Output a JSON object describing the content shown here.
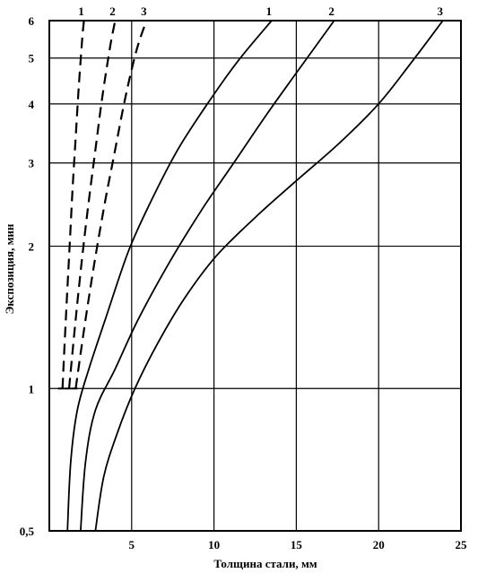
{
  "chart_data": {
    "type": "line",
    "xlabel": "Толщина стали, мм",
    "ylabel": "Экспозиция, мин",
    "xlim": [
      0,
      25
    ],
    "ylim": [
      0.5,
      6
    ],
    "yscale": "log",
    "grid": true,
    "x_ticks": [
      {
        "value": 5,
        "label": "5"
      },
      {
        "value": 10,
        "label": "10"
      },
      {
        "value": 15,
        "label": "15"
      },
      {
        "value": 20,
        "label": "20"
      },
      {
        "value": 25,
        "label": "25"
      }
    ],
    "y_ticks": [
      {
        "value": 0.5,
        "label": "0,5"
      },
      {
        "value": 1,
        "label": "1"
      },
      {
        "value": 2,
        "label": "2"
      },
      {
        "value": 3,
        "label": "3"
      },
      {
        "value": 4,
        "label": "4"
      },
      {
        "value": 5,
        "label": "5"
      },
      {
        "value": 6,
        "label": "6"
      }
    ],
    "series": [
      {
        "name": "1",
        "style": "dashed",
        "x": [
          0.8,
          1.0,
          1.2,
          1.4,
          1.6,
          1.8,
          2.0,
          2.1
        ],
        "y": [
          1.0,
          1.4,
          1.9,
          2.6,
          3.4,
          4.4,
          5.5,
          6.0
        ]
      },
      {
        "name": "2",
        "style": "dashed",
        "x": [
          1.2,
          1.6,
          2.0,
          2.4,
          2.8,
          3.2,
          3.7,
          4.0
        ],
        "y": [
          1.0,
          1.4,
          1.9,
          2.5,
          3.2,
          4.1,
          5.3,
          6.0
        ]
      },
      {
        "name": "3",
        "style": "dashed",
        "x": [
          1.6,
          2.2,
          2.8,
          3.4,
          4.0,
          4.6,
          5.3,
          5.9
        ],
        "y": [
          1.0,
          1.4,
          1.9,
          2.5,
          3.2,
          4.1,
          5.2,
          6.0
        ]
      },
      {
        "name": "1",
        "style": "solid",
        "x": [
          1.1,
          1.3,
          1.7,
          2.4,
          3.4,
          4.8,
          6.2,
          7.8,
          9.6,
          11.4,
          13.5
        ],
        "y": [
          0.5,
          0.7,
          0.9,
          1.1,
          1.4,
          1.95,
          2.5,
          3.2,
          4.0,
          4.9,
          6.0
        ]
      },
      {
        "name": "2",
        "style": "solid",
        "x": [
          1.9,
          2.2,
          2.8,
          4.0,
          5.4,
          7.3,
          9.3,
          11.2,
          13.2,
          15.1,
          17.3
        ],
        "y": [
          0.5,
          0.7,
          0.9,
          1.1,
          1.4,
          1.85,
          2.4,
          3.0,
          3.8,
          4.7,
          6.0
        ]
      },
      {
        "name": "3",
        "style": "solid",
        "x": [
          2.8,
          3.3,
          4.1,
          5.2,
          6.6,
          8.2,
          10.1,
          12.5,
          15.0,
          17.6,
          20.0,
          22.0,
          23.9
        ],
        "y": [
          0.5,
          0.65,
          0.8,
          1.0,
          1.25,
          1.55,
          1.9,
          2.3,
          2.75,
          3.3,
          4.0,
          4.9,
          6.0
        ]
      }
    ]
  }
}
